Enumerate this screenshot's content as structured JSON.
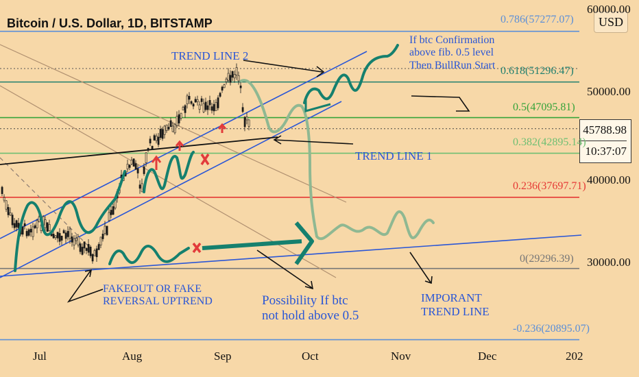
{
  "chart_data": {
    "type": "candlestick",
    "title": "Bitcoin / U.S. Dollar, 1D, BITSTAMP",
    "currency_button": "USD",
    "current_price": "45788.98",
    "countdown": "10:37:07",
    "y_ticks": [
      "60000.00",
      "50000.00",
      "40000.00",
      "30000.00"
    ],
    "x_ticks": [
      "Jul",
      "Aug",
      "Sep",
      "Oct",
      "Nov",
      "Dec",
      "202"
    ],
    "fib_levels": [
      {
        "label": "0.786(57277.07)",
        "value": 57277.07,
        "color": "#5b8fd8"
      },
      {
        "label": "0.618(51296.47)",
        "value": 51296.47,
        "color": "#1f7f6e"
      },
      {
        "label": "0.5(47095.81)",
        "value": 47095.81,
        "color": "#36a33a"
      },
      {
        "label": "0.382(42895.14)",
        "value": 42895.14,
        "color": "#6fbf73"
      },
      {
        "label": "0.236(37697.71)",
        "value": 37697.71,
        "color": "#e53935"
      },
      {
        "label": "0(29296.39)",
        "value": 29296.39,
        "color": "#777777"
      },
      {
        "label": "-0.236(20895.07)",
        "value": 20895.07,
        "color": "#5b8fd8"
      }
    ],
    "annotations": {
      "trend_line_2": "TREND LINE 2",
      "trend_line_1": "TREND LINE 1",
      "bullrun_line1": "If btc Confirmation",
      "bullrun_line2": "above fib. 0.5 level",
      "bullrun_line3": "Then BullRun Start",
      "fakeout_line1": "FAKEOUT OR FAKE",
      "fakeout_line2": "REVERSAL UPTREND",
      "possibility_line1": "Possibility If btc",
      "possibility_line2": "not hold above 0.5",
      "important_line1": "IMPORANT",
      "important_line2": "TREND LINE"
    }
  }
}
